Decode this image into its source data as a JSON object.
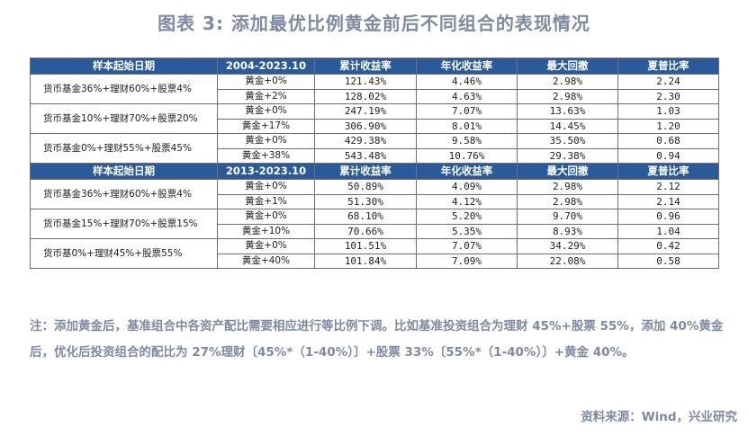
{
  "title": "图表 3:  添加最优比例黄金前后不同组合的表现情况",
  "headers": [
    [
      "样本起始日期",
      "2004-2023.10",
      "累计收益率",
      "年化收益率",
      "最大回撤",
      "夏普比率"
    ],
    [
      "样本起始日期",
      "2013-2023.10",
      "累计收益率",
      "年化收益率",
      "最大回撤",
      "夏普比率"
    ]
  ],
  "sections": [
    {
      "groups": [
        {
          "combo": "货币基金36%+理财60%+股票4%",
          "rows": [
            [
              "黄金+0%",
              "121.43%",
              "4.46%",
              "2.98%",
              "2.24"
            ],
            [
              "黄金+2%",
              "128.02%",
              "4.63%",
              "2.98%",
              "2.30"
            ]
          ]
        },
        {
          "combo": "货币基金10%+理财70%+股票20%",
          "rows": [
            [
              "黄金+0%",
              "247.19%",
              "7.07%",
              "13.63%",
              "1.03"
            ],
            [
              "黄金+17%",
              "306.90%",
              "8.01%",
              "14.45%",
              "1.20"
            ]
          ]
        },
        {
          "combo": "货币基金0%+理财55%+股票45%",
          "rows": [
            [
              "黄金+0%",
              "429.38%",
              "9.58%",
              "35.50%",
              "0.68"
            ],
            [
              "黄金+38%",
              "543.48%",
              "10.76%",
              "29.38%",
              "0.94"
            ]
          ]
        }
      ]
    },
    {
      "groups": [
        {
          "combo": "货币基金36%+理财60%+股票4%",
          "rows": [
            [
              "黄金+0%",
              "50.89%",
              "4.09%",
              "2.98%",
              "2.12"
            ],
            [
              "黄金+1%",
              "51.30%",
              "4.12%",
              "2.98%",
              "2.14"
            ]
          ]
        },
        {
          "combo": "货币基金15%+理财70%+股票15%",
          "rows": [
            [
              "黄金+0%",
              "68.10%",
              "5.20%",
              "9.70%",
              "0.96"
            ],
            [
              "黄金+10%",
              "70.66%",
              "5.35%",
              "8.93%",
              "1.04"
            ]
          ]
        },
        {
          "combo": "货币基0%+理财45%+股票55%",
          "rows": [
            [
              "黄金+0%",
              "101.51%",
              "7.07%",
              "34.29%",
              "0.42"
            ],
            [
              "黄金+40%",
              "101.84%",
              "7.09%",
              "22.08%",
              "0.58"
            ]
          ]
        }
      ]
    }
  ],
  "note": "注：添加黄金后，基准组合中各资产配比需要相应进行等比例下调。比如基准投资组合为理财 45%+股票 55%，添加 40%黄金后，优化后投资组合的配比为 27%理财〔45%*（1-40%）〕+股票 33%〔55%*（1-40%）〕+黄金 40%。",
  "source": "资料来源：Wind，兴业研究"
}
